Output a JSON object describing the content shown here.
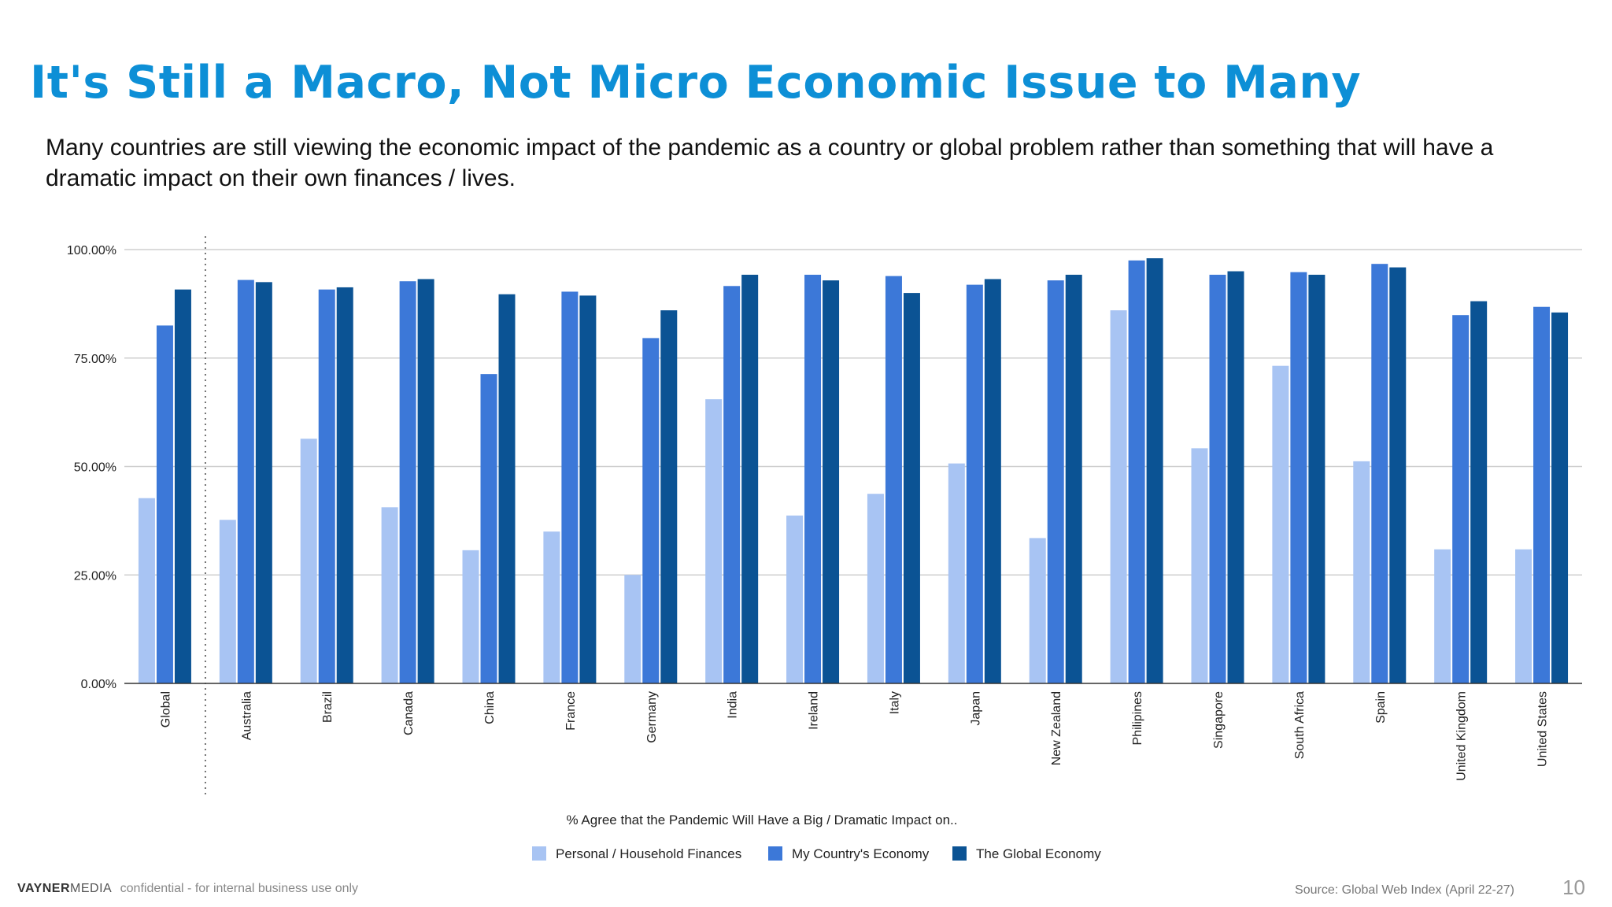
{
  "title": "It's Still a Macro, Not Micro Economic Issue to Many",
  "subtitle": "Many countries are still viewing the economic impact of the pandemic as a country or global problem rather than something that will have a dramatic impact on their own finances / lives.",
  "chart_data": {
    "type": "bar",
    "title": "",
    "xlabel": "% Agree that the Pandemic Will Have a Big / Dramatic Impact on..",
    "ylabel": "",
    "ylim": [
      0,
      100
    ],
    "yticks": [
      "0.00%",
      "25.00%",
      "50.00%",
      "75.00%",
      "100.00%"
    ],
    "grid": true,
    "legend_position": "bottom",
    "categories": [
      "Global",
      "Australia",
      "Brazil",
      "Canada",
      "China",
      "France",
      "Germany",
      "India",
      "Ireland",
      "Italy",
      "Japan",
      "New Zealand",
      "Philipines",
      "Singapore",
      "South Africa",
      "Spain",
      "United Kingdom",
      "United States"
    ],
    "series": [
      {
        "name": "Personal / Household Finances",
        "color": "#a8c4f3",
        "values": [
          42.7,
          37.7,
          56.4,
          40.6,
          30.7,
          35.0,
          25.0,
          65.5,
          38.7,
          43.7,
          50.7,
          33.5,
          86.0,
          54.2,
          73.2,
          51.2,
          30.9,
          30.9
        ]
      },
      {
        "name": "My Country's Economy",
        "color": "#3c78d8",
        "values": [
          82.5,
          93.0,
          90.8,
          92.7,
          71.3,
          90.3,
          79.6,
          91.6,
          94.2,
          93.9,
          91.9,
          92.9,
          97.5,
          94.2,
          94.8,
          96.7,
          84.9,
          86.8
        ]
      },
      {
        "name": "The Global Economy",
        "color": "#0b5394",
        "values": [
          90.8,
          92.5,
          91.3,
          93.2,
          89.7,
          89.4,
          86.0,
          94.2,
          92.9,
          90.0,
          93.2,
          94.2,
          98.0,
          95.0,
          94.2,
          95.9,
          88.1,
          85.5
        ]
      }
    ]
  },
  "footer": {
    "brand_bold": "VAYNER",
    "brand_light": "MEDIA",
    "confidential": "confidential - for internal business use only",
    "source": "Source: Global Web Index (April 22-27)",
    "page_number": "10"
  }
}
